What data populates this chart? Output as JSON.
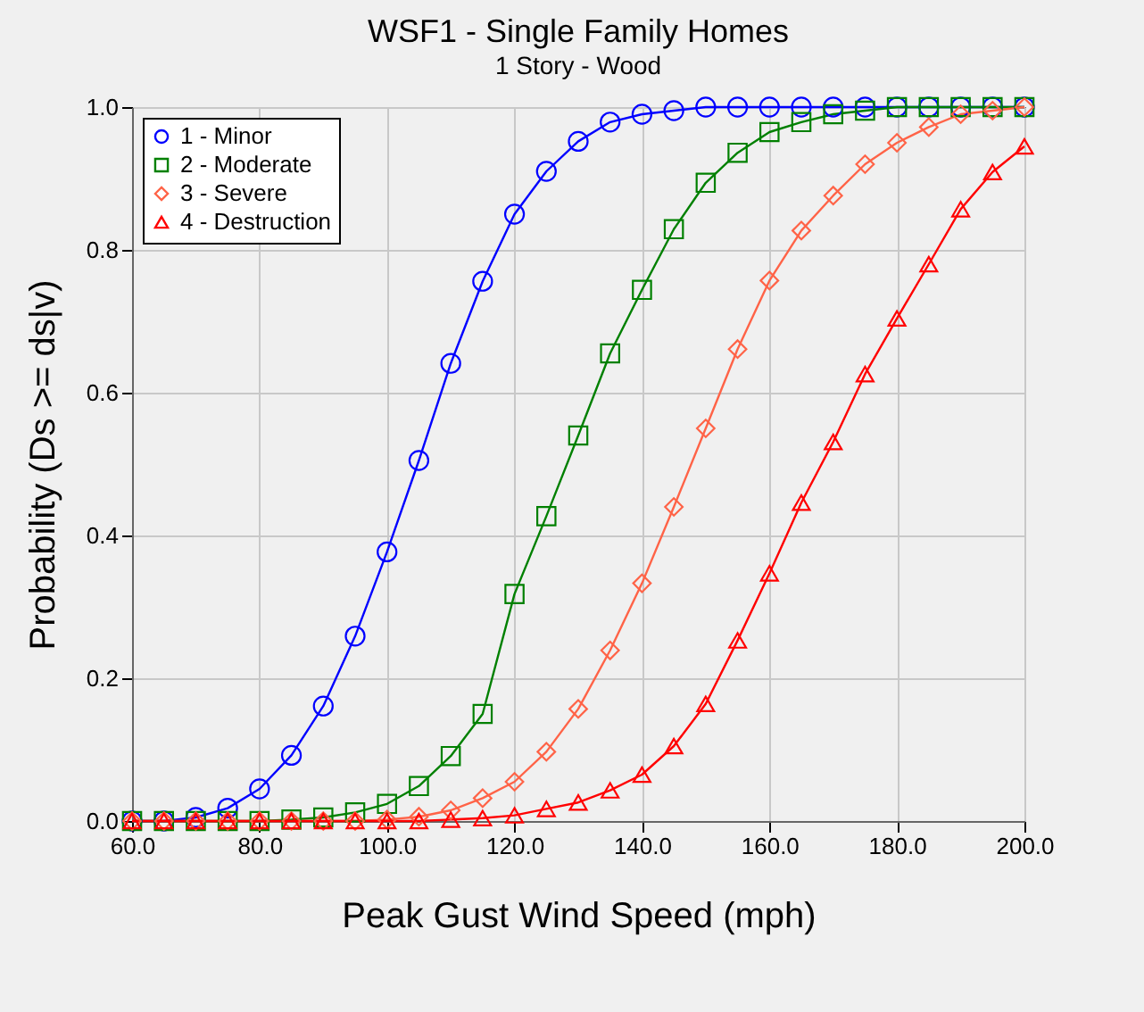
{
  "chart_data": {
    "type": "line",
    "title": "WSF1 - Single Family Homes",
    "subtitle": "1 Story - Wood",
    "xlabel": "Peak Gust Wind Speed (mph)",
    "ylabel": "Probability (Ds >= ds|v)",
    "x": [
      60,
      65,
      70,
      75,
      80,
      85,
      90,
      95,
      100,
      105,
      110,
      115,
      120,
      125,
      130,
      135,
      140,
      145,
      150,
      155,
      160,
      165,
      170,
      175,
      180,
      185,
      190,
      195,
      200
    ],
    "series": [
      {
        "name": "1 - Minor",
        "color": "#0000ff",
        "marker": "circle",
        "values": [
          0,
          0,
          0.005,
          0.018,
          0.045,
          0.092,
          0.161,
          0.259,
          0.377,
          0.505,
          0.641,
          0.756,
          0.85,
          0.91,
          0.952,
          0.979,
          0.99,
          0.995,
          1,
          1,
          1,
          1,
          1,
          1,
          1,
          1,
          1,
          1,
          1
        ]
      },
      {
        "name": "2 - Moderate",
        "color": "#008000",
        "marker": "square",
        "values": [
          0,
          0,
          0,
          0,
          0,
          0.002,
          0.005,
          0.012,
          0.024,
          0.049,
          0.091,
          0.15,
          0.318,
          0.427,
          0.54,
          0.655,
          0.744,
          0.829,
          0.894,
          0.936,
          0.965,
          0.979,
          0.99,
          0.995,
          1,
          1,
          1,
          1,
          1
        ]
      },
      {
        "name": "3 - Severe",
        "color": "#ff6347",
        "marker": "diamond",
        "values": [
          0,
          0,
          0,
          0,
          0,
          0,
          0,
          0,
          0.002,
          0.006,
          0.015,
          0.032,
          0.055,
          0.097,
          0.157,
          0.239,
          0.333,
          0.44,
          0.55,
          0.661,
          0.757,
          0.827,
          0.876,
          0.92,
          0.95,
          0.972,
          0.99,
          0.995,
          1
        ]
      },
      {
        "name": "4 - Destruction",
        "color": "#ff0000",
        "marker": "triangle",
        "values": [
          0,
          0,
          0,
          0,
          0,
          0,
          0,
          0,
          0,
          0,
          0.002,
          0.004,
          0.008,
          0.017,
          0.026,
          0.043,
          0.065,
          0.105,
          0.164,
          0.253,
          0.347,
          0.446,
          0.531,
          0.626,
          0.704,
          0.78,
          0.857,
          0.909,
          0.945
        ]
      }
    ],
    "xlim": [
      60,
      200
    ],
    "ylim": [
      0,
      1
    ],
    "xticks": [
      {
        "value": 60,
        "label": "60.0"
      },
      {
        "value": 80,
        "label": "80.0"
      },
      {
        "value": 100,
        "label": "100.0"
      },
      {
        "value": 120,
        "label": "120.0"
      },
      {
        "value": 140,
        "label": "140.0"
      },
      {
        "value": 160,
        "label": "160.0"
      },
      {
        "value": 180,
        "label": "180.0"
      },
      {
        "value": 200,
        "label": "200.0"
      }
    ],
    "yticks": [
      {
        "value": 0,
        "label": "0.0"
      },
      {
        "value": 0.2,
        "label": "0.2"
      },
      {
        "value": 0.4,
        "label": "0.4"
      },
      {
        "value": 0.6,
        "label": "0.6"
      },
      {
        "value": 0.8,
        "label": "0.8"
      },
      {
        "value": 1,
        "label": "1.0"
      }
    ],
    "grid": true,
    "legend": "top left",
    "line_style": "solid"
  }
}
